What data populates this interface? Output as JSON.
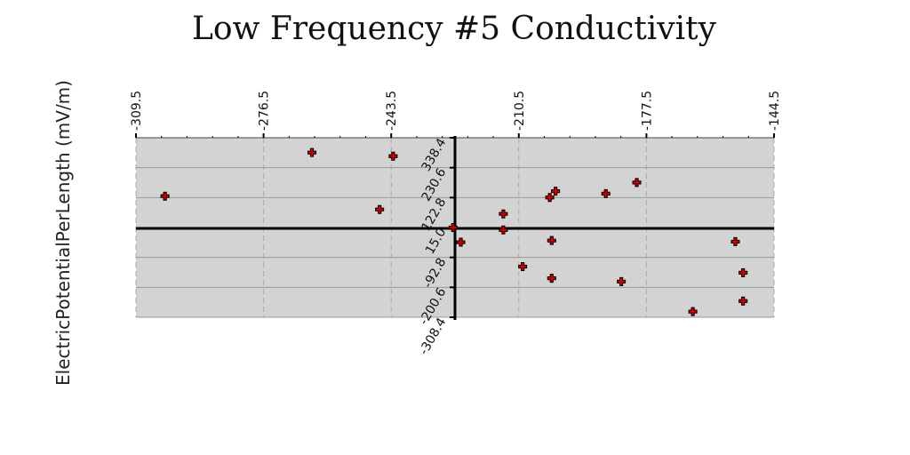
{
  "chart_data": {
    "type": "scatter",
    "title": "Low Frequency #5 Conductivity",
    "xlabel": "",
    "ylabel": "ElectricPotentialPerLength (mV/m)",
    "x_ticks": [
      "-309.5",
      "-276.5",
      "-243.5",
      "-210.5",
      "-177.5",
      "-144.5"
    ],
    "y_ticks": [
      "338.4",
      "230.6",
      "122.8",
      "15.0",
      "-92.8",
      "-200.6",
      "-308.4"
    ],
    "xlim": [
      -309.5,
      -144.5
    ],
    "ylim": [
      -308.4,
      338.4
    ],
    "grid": true,
    "plot_background": "#d3d3d3",
    "marker_color": "#cc0000",
    "marker": "plus",
    "points": [
      {
        "x": -302,
        "y": 128
      },
      {
        "x": -264,
        "y": 285
      },
      {
        "x": -243,
        "y": 272
      },
      {
        "x": -246.5,
        "y": 80
      },
      {
        "x": -227.5,
        "y": 15
      },
      {
        "x": -225.5,
        "y": -38
      },
      {
        "x": -214.5,
        "y": 64
      },
      {
        "x": -214.5,
        "y": 6
      },
      {
        "x": -209.5,
        "y": -126
      },
      {
        "x": -202,
        "y": -168
      },
      {
        "x": -202,
        "y": -32
      },
      {
        "x": -202.5,
        "y": 123
      },
      {
        "x": -201,
        "y": 146
      },
      {
        "x": -188,
        "y": 137
      },
      {
        "x": -180,
        "y": 177
      },
      {
        "x": -184,
        "y": -180
      },
      {
        "x": -165.5,
        "y": -288
      },
      {
        "x": -154.5,
        "y": -36
      },
      {
        "x": -152.5,
        "y": -148
      },
      {
        "x": -152.5,
        "y": -250
      }
    ]
  }
}
